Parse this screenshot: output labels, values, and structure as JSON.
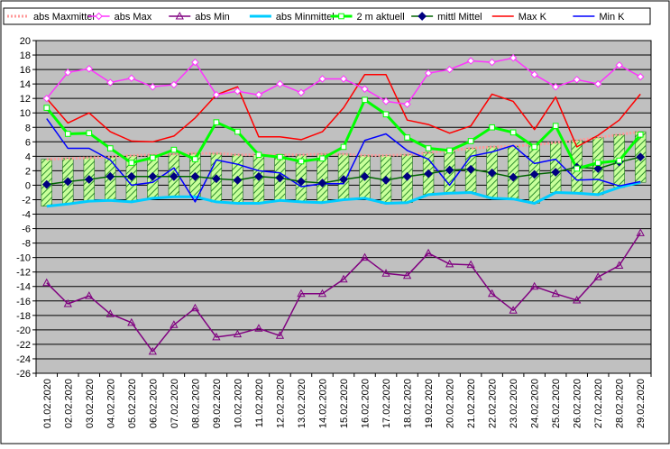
{
  "chart_data": {
    "type": "line",
    "title": "",
    "xlabel": "",
    "ylabel": "",
    "ylim": [
      -26,
      20
    ],
    "ytick_step": 2,
    "grid": true,
    "legend_position": "top",
    "plot_background": "#c0c0c0",
    "categories": [
      "01.02.2020",
      "02.02.2020",
      "03.02.2020",
      "04.02.2020",
      "05.02.2020",
      "06.02.2020",
      "07.02.2020",
      "08.02.2020",
      "09.02.2020",
      "10.02.2020",
      "11.02.2020",
      "12.02.2020",
      "13.02.2020",
      "14.02.2020",
      "15.02.2020",
      "16.02.2020",
      "17.02.2020",
      "18.02.2020",
      "19.02.2020",
      "20.02.2020",
      "21.02.2020",
      "22.02.2020",
      "23.02.2020",
      "24.02.2020",
      "25.02.2020",
      "26.02.2020",
      "27.02.2020",
      "28.02.2020",
      "29.02.2020"
    ],
    "bands": {
      "upper": "abs Maxmittel",
      "lower": "abs Minmittel",
      "fill": "#c8ff9a",
      "hatch": "#2f8f2f"
    },
    "series": [
      {
        "name": "abs Maxmittel",
        "color": "#ff9999",
        "width": 3,
        "dashed": true,
        "marker": "none",
        "values": [
          3.6,
          3.7,
          3.8,
          3.9,
          4.1,
          4.2,
          4.3,
          4.4,
          4.4,
          4.2,
          4.2,
          4.2,
          4.2,
          4.3,
          4.3,
          4.1,
          4.1,
          4.2,
          4.5,
          4.8,
          5.1,
          5.3,
          5.4,
          5.6,
          5.9,
          6.2,
          6.6,
          7.0,
          7.4
        ]
      },
      {
        "name": "abs Max",
        "color": "#ff33ff",
        "width": 1.5,
        "marker": "diamond-open",
        "values": [
          12.0,
          15.6,
          16.1,
          14.2,
          14.8,
          13.6,
          13.9,
          17.0,
          12.5,
          13.0,
          12.5,
          14.0,
          12.8,
          14.7,
          14.7,
          13.3,
          11.6,
          11.2,
          15.5,
          16.0,
          17.2,
          17.0,
          17.6,
          15.3,
          13.6,
          14.6,
          14.0,
          16.6,
          15.0
        ]
      },
      {
        "name": "abs Min",
        "color": "#800080",
        "width": 1.5,
        "marker": "triangle-open",
        "values": [
          -13.5,
          -16.4,
          -15.3,
          -17.8,
          -19.0,
          -23.0,
          -19.3,
          -17.0,
          -21.0,
          -20.6,
          -19.8,
          -20.8,
          -15.0,
          -15.0,
          -13.0,
          -10.0,
          -12.2,
          -12.5,
          -9.4,
          -10.9,
          -11.0,
          -15.0,
          -17.3,
          -14.0,
          -15.0,
          -15.9,
          -12.7,
          -11.1,
          -6.6
        ]
      },
      {
        "name": "abs Minmittel",
        "color": "#00ccff",
        "width": 3,
        "marker": "none",
        "values": [
          -2.9,
          -2.6,
          -2.2,
          -2.1,
          -2.3,
          -1.8,
          -1.6,
          -1.6,
          -2.3,
          -2.5,
          -2.5,
          -2.1,
          -2.3,
          -2.4,
          -2.0,
          -1.8,
          -2.5,
          -2.4,
          -1.3,
          -1.1,
          -1.0,
          -1.8,
          -1.9,
          -2.5,
          -1.0,
          -1.1,
          -1.3,
          -0.3,
          0.4
        ]
      },
      {
        "name": "2 m aktuell",
        "color": "#00ff00",
        "width": 3,
        "marker": "square-open",
        "values": [
          10.7,
          7.1,
          7.2,
          5.1,
          3.1,
          3.8,
          4.9,
          3.6,
          8.7,
          7.4,
          4.2,
          3.9,
          3.3,
          3.7,
          5.3,
          11.8,
          9.8,
          6.6,
          5.1,
          4.8,
          6.1,
          8.0,
          7.3,
          5.3,
          8.2,
          2.3,
          3.1,
          3.4,
          7.0
        ]
      },
      {
        "name": "mittl Mittel",
        "color": "#006400",
        "width": 1.5,
        "marker": "diamond-filled",
        "marker_color": "#000080",
        "values": [
          0.1,
          0.5,
          0.8,
          1.2,
          1.2,
          1.2,
          1.2,
          1.2,
          0.9,
          0.7,
          1.2,
          1.0,
          0.5,
          0.3,
          0.8,
          1.2,
          0.7,
          1.2,
          1.6,
          2.1,
          2.2,
          1.7,
          1.1,
          1.5,
          1.8,
          2.5,
          2.3,
          3.2,
          3.9
        ]
      },
      {
        "name": "Max K",
        "color": "#ff0000",
        "width": 1.5,
        "marker": "none",
        "values": [
          12.0,
          8.6,
          10.0,
          7.4,
          6.1,
          6.0,
          6.8,
          9.3,
          12.5,
          13.6,
          6.7,
          6.7,
          6.3,
          7.4,
          10.7,
          15.3,
          15.3,
          9.0,
          8.4,
          7.2,
          8.2,
          12.6,
          11.6,
          7.7,
          12.2,
          5.3,
          6.9,
          9.0,
          12.6
        ]
      },
      {
        "name": "Min K",
        "color": "#0000ff",
        "width": 1.5,
        "marker": "none",
        "values": [
          9.2,
          5.1,
          5.1,
          3.5,
          0.0,
          0.4,
          2.4,
          -2.3,
          3.5,
          2.9,
          2.0,
          1.7,
          -0.2,
          0.2,
          0.2,
          6.2,
          7.1,
          4.8,
          3.6,
          0.0,
          4.0,
          4.6,
          5.5,
          3.0,
          3.6,
          0.7,
          0.8,
          -0.1,
          0.5
        ]
      }
    ]
  }
}
